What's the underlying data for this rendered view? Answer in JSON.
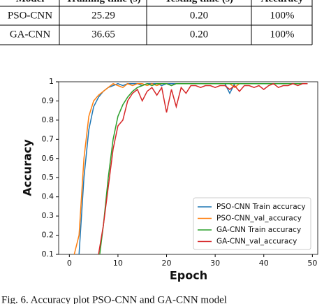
{
  "table": {
    "header": [
      "Model",
      "Training time (s)",
      "Testing time (s)",
      "Accuracy"
    ],
    "rows": [
      [
        "PSO-CNN",
        "25.29",
        "0.20",
        "100%"
      ],
      [
        "GA-CNN",
        "36.65",
        "0.20",
        "100%"
      ]
    ]
  },
  "chart_data": {
    "type": "line",
    "x_label": "Epoch",
    "y_label": "Accuracy",
    "x": [
      0,
      1,
      2,
      3,
      4,
      5,
      6,
      7,
      8,
      9,
      10,
      11,
      12,
      13,
      14,
      15,
      16,
      17,
      18,
      19,
      20,
      21,
      22,
      23,
      24,
      25,
      26,
      27,
      28,
      29,
      30,
      31,
      32,
      33,
      34,
      35,
      36,
      37,
      38,
      39,
      40,
      41,
      42,
      43,
      44,
      45,
      46,
      47,
      48,
      49
    ],
    "series": [
      {
        "name": "PSO-CNN Train accuracy",
        "color": "#1f77b4",
        "values": [
          null,
          null,
          0.1,
          0.5,
          0.75,
          0.87,
          0.92,
          0.95,
          0.97,
          0.98,
          0.99,
          0.98,
          0.99,
          0.99,
          0.99,
          0.98,
          0.99,
          0.99,
          0.99,
          0.98,
          0.99,
          0.99,
          0.99,
          0.99,
          0.99,
          0.99,
          0.99,
          0.99,
          0.99,
          0.99,
          0.99,
          0.99,
          0.99,
          0.94,
          0.99,
          0.99,
          0.99,
          0.99,
          0.99,
          0.99,
          0.99,
          0.99,
          0.99,
          0.99,
          0.99,
          0.99,
          0.99,
          0.99,
          0.99,
          0.99
        ]
      },
      {
        "name": "PSO-CNN_val_accuracy",
        "color": "#ff7f0e",
        "values": [
          null,
          0.1,
          0.2,
          0.6,
          0.82,
          0.9,
          0.93,
          0.95,
          0.97,
          0.99,
          0.98,
          0.97,
          0.99,
          0.98,
          0.99,
          0.99,
          0.98,
          0.99,
          0.98,
          0.99,
          0.99,
          0.98,
          0.99,
          0.99,
          0.99,
          0.99,
          0.99,
          0.99,
          0.99,
          0.99,
          0.99,
          0.99,
          0.99,
          0.99,
          0.97,
          0.99,
          0.99,
          0.99,
          0.99,
          0.99,
          0.99,
          0.99,
          0.99,
          0.99,
          0.99,
          0.99,
          0.99,
          0.99,
          0.99,
          0.99
        ]
      },
      {
        "name": "GA-CNN Train accuracy",
        "color": "#2ca02c",
        "values": [
          null,
          null,
          null,
          null,
          null,
          null,
          0.05,
          0.25,
          0.5,
          0.7,
          0.82,
          0.88,
          0.92,
          0.95,
          0.97,
          0.98,
          0.99,
          0.98,
          0.99,
          0.99,
          0.99,
          0.98,
          0.99,
          0.99,
          0.99,
          0.99,
          0.99,
          0.99,
          0.99,
          0.99,
          0.99,
          0.99,
          0.99,
          0.99,
          0.99,
          0.99,
          0.99,
          0.99,
          0.99,
          0.99,
          0.99,
          0.99,
          0.99,
          0.99,
          0.99,
          0.99,
          0.99,
          0.99,
          0.99,
          0.99
        ]
      },
      {
        "name": "GA-CNN_val_accuracy",
        "color": "#d62728",
        "values": [
          null,
          null,
          null,
          null,
          null,
          null,
          0.1,
          0.25,
          0.45,
          0.65,
          0.77,
          0.8,
          0.9,
          0.94,
          0.96,
          0.9,
          0.95,
          0.97,
          0.93,
          0.97,
          0.84,
          0.96,
          0.87,
          0.97,
          0.94,
          0.98,
          0.98,
          0.97,
          0.98,
          0.98,
          0.97,
          0.98,
          0.98,
          0.96,
          0.98,
          0.95,
          0.98,
          0.98,
          0.97,
          0.98,
          0.96,
          0.98,
          0.99,
          0.97,
          0.98,
          0.98,
          0.99,
          0.98,
          0.99,
          0.99
        ]
      }
    ],
    "xlim": [
      -2.2,
      51.1
    ],
    "xticks": [
      0,
      10,
      20,
      30,
      40,
      50
    ],
    "ylim": [
      0.1,
      1.0
    ],
    "yticks": [
      0.1,
      0.2,
      0.3,
      0.4,
      0.5,
      0.6,
      0.7,
      0.8,
      0.9,
      1.0
    ],
    "legend": "lower right"
  },
  "caption": "Fig. 6. Accuracy plot PSO-CNN and GA-CNN model"
}
